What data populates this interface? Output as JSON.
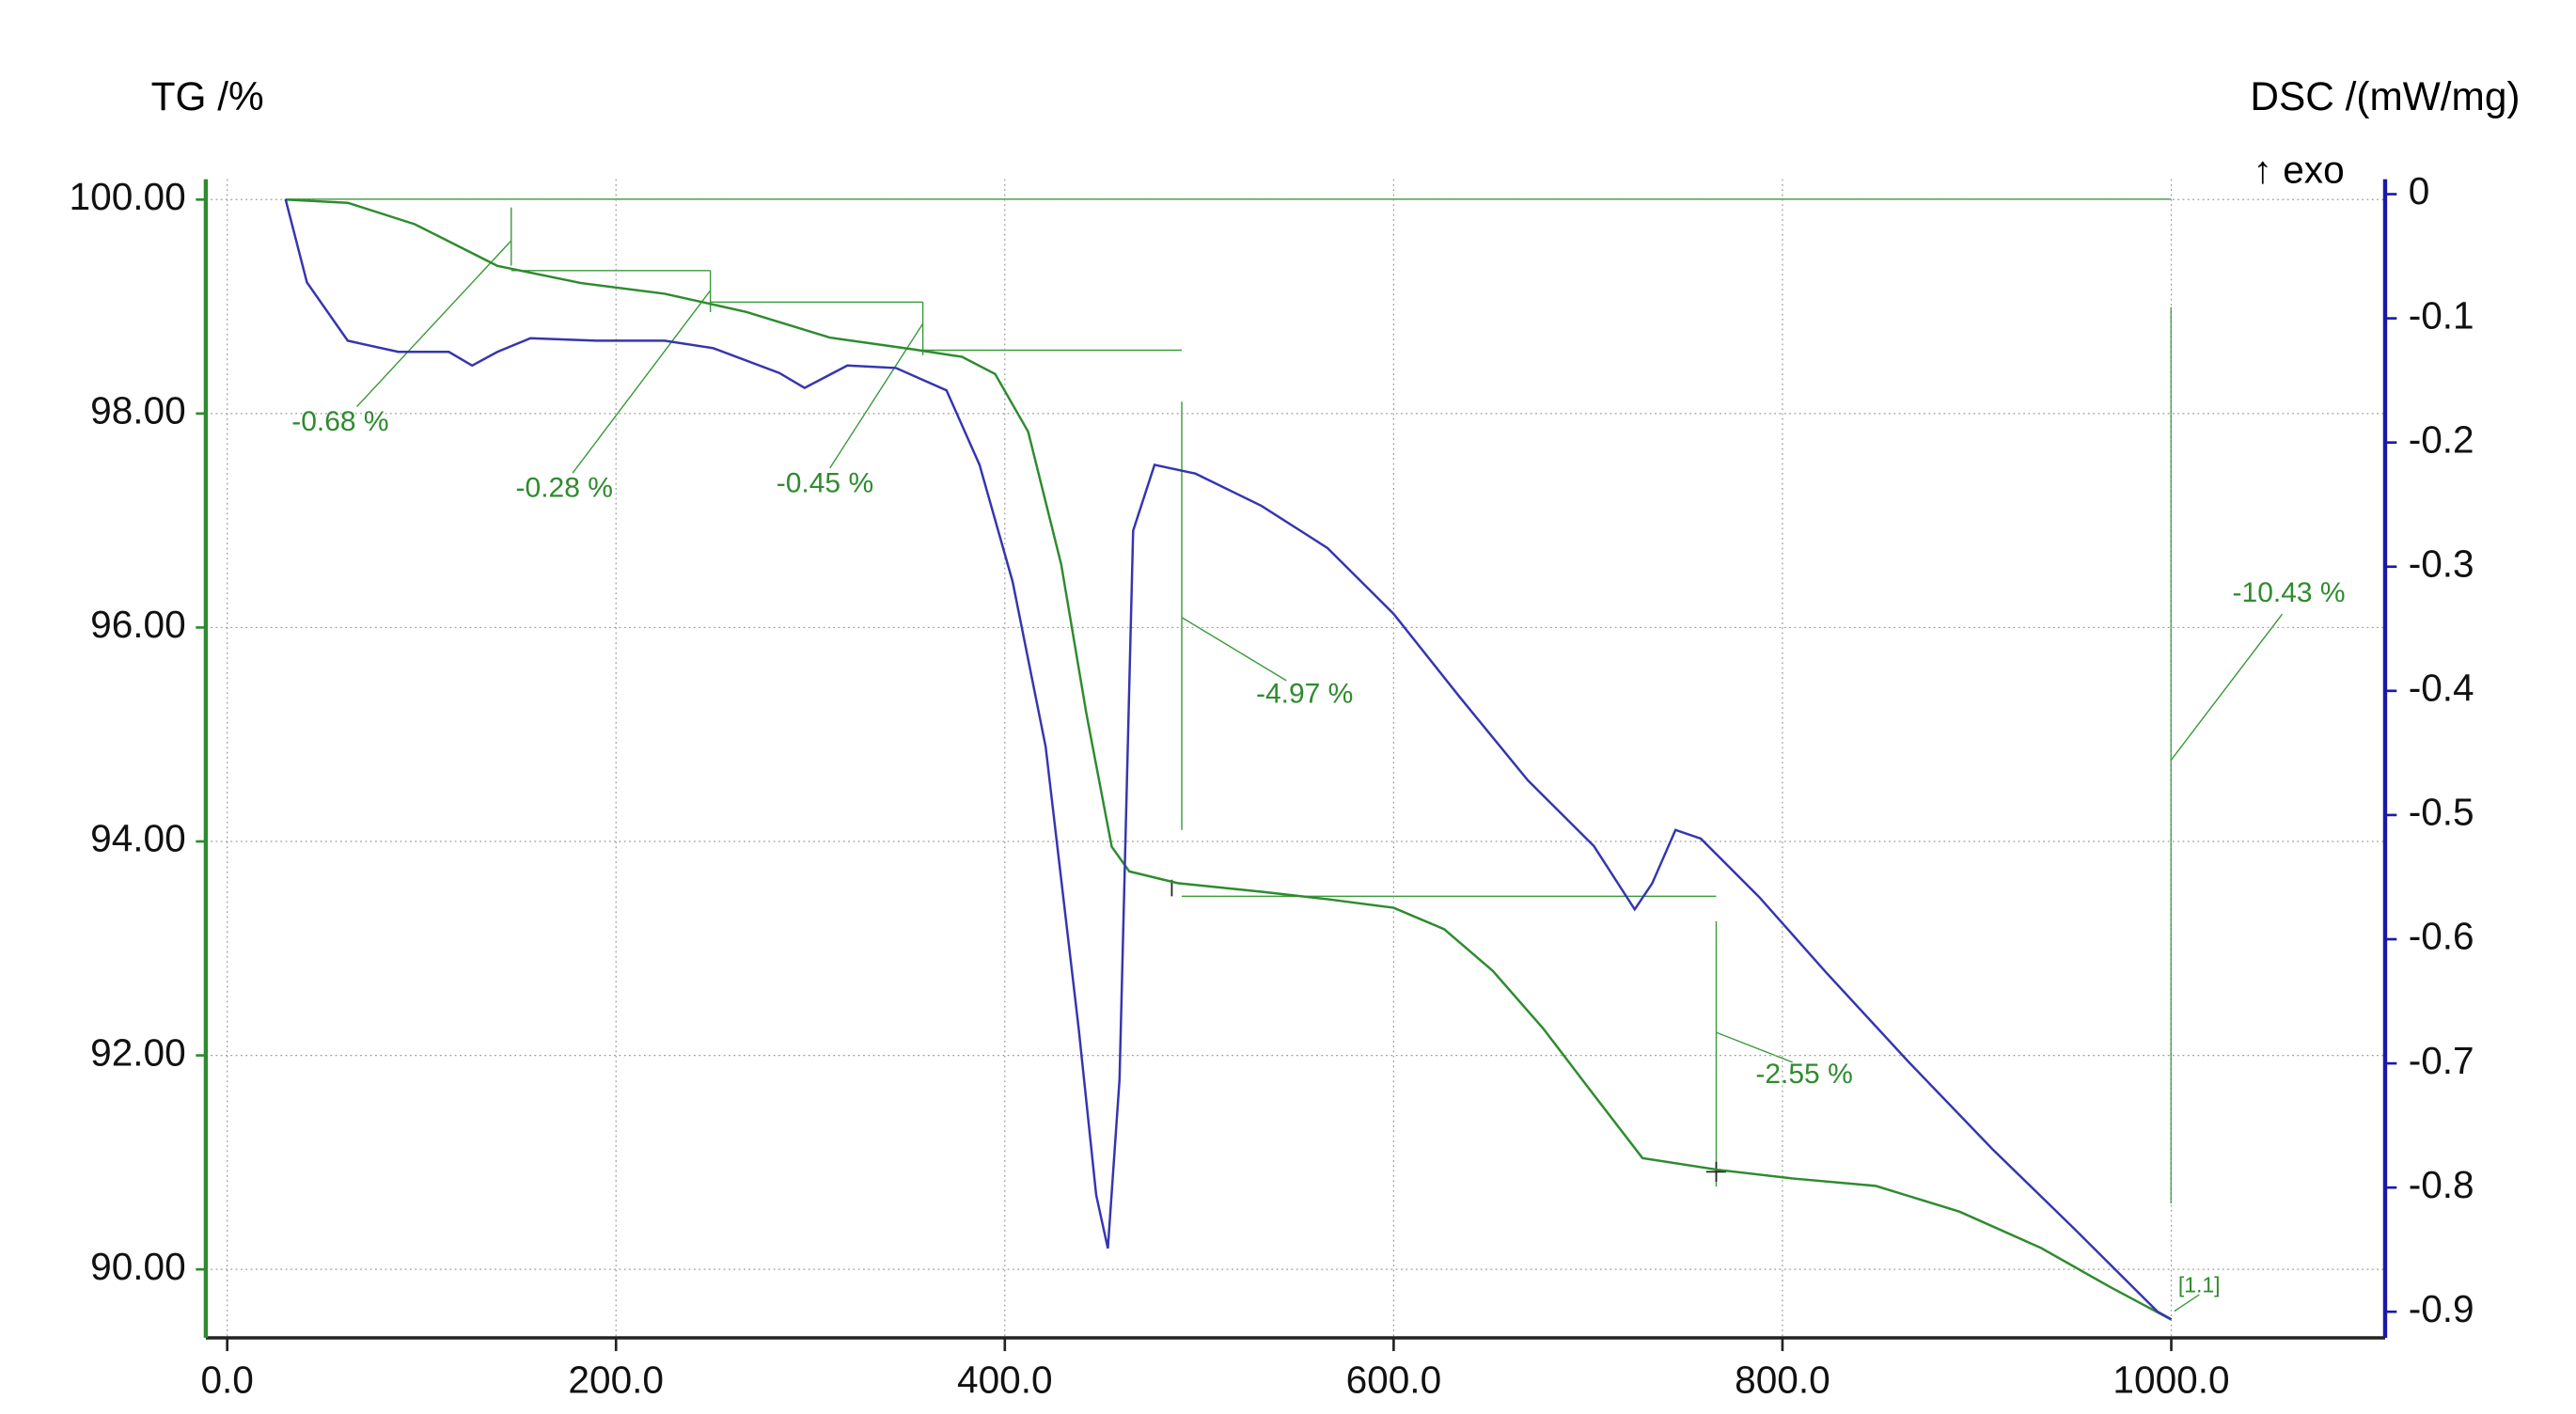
{
  "chart_data": {
    "type": "line",
    "y_label": "TG /%",
    "y2_label": "DSC /(mW/mg)",
    "exo_label": "↑ exo",
    "xlim": [
      -11,
      1110
    ],
    "ylim": [
      89.36,
      100.19
    ],
    "y2lim": [
      -0.921,
      0.012
    ],
    "xticks": [
      {
        "value": 0,
        "label": "0.0"
      },
      {
        "value": 200,
        "label": "200.0"
      },
      {
        "value": 400,
        "label": "400.0"
      },
      {
        "value": 600,
        "label": "600.0"
      },
      {
        "value": 800,
        "label": "800.0"
      },
      {
        "value": 1000,
        "label": "1000.0"
      }
    ],
    "yticks": [
      {
        "value": 90,
        "label": "90.00"
      },
      {
        "value": 92,
        "label": "92.00"
      },
      {
        "value": 94,
        "label": "94.00"
      },
      {
        "value": 96,
        "label": "96.00"
      },
      {
        "value": 98,
        "label": "98.00"
      },
      {
        "value": 100,
        "label": "100.00"
      }
    ],
    "y2ticks": [
      0,
      -0.1,
      -0.2,
      -0.3,
      -0.4,
      -0.5,
      -0.6,
      -0.7,
      -0.8,
      -0.9
    ],
    "grid": true,
    "series": [
      {
        "color": "#2e8b2e",
        "axis": "y",
        "x": [
          30,
          62,
          96.5,
          139,
          182,
          225,
          267,
          310,
          353,
          378,
          395,
          412,
          429,
          442,
          455,
          464,
          489,
          532,
          566,
          600,
          626,
          651,
          677,
          703,
          728,
          767,
          805,
          848,
          891,
          933,
          968,
          1000
        ],
        "values": [
          100.0,
          99.97,
          99.77,
          99.38,
          99.22,
          99.12,
          98.95,
          98.71,
          98.6,
          98.53,
          98.37,
          97.83,
          96.59,
          95.19,
          93.95,
          93.72,
          93.61,
          93.53,
          93.46,
          93.38,
          93.18,
          92.79,
          92.25,
          91.63,
          91.04,
          90.93,
          90.85,
          90.78,
          90.54,
          90.2,
          89.84,
          89.53
        ]
      },
      {
        "color": "#3535b0",
        "axis": "y2",
        "x": [
          30,
          41,
          62,
          88,
          114,
          126,
          139,
          156,
          190,
          225,
          250,
          284,
          297,
          319,
          344,
          370,
          387,
          404,
          421,
          438,
          447,
          453,
          459,
          466,
          477,
          498,
          532,
          566,
          600,
          634,
          669,
          703,
          724,
          733,
          745,
          758,
          788,
          822,
          865,
          908,
          950,
          993,
          1000
        ],
        "values": [
          -0.004,
          -0.071,
          -0.118,
          -0.127,
          -0.127,
          -0.138,
          -0.127,
          -0.116,
          -0.118,
          -0.118,
          -0.124,
          -0.144,
          -0.156,
          -0.138,
          -0.14,
          -0.158,
          -0.218,
          -0.312,
          -0.445,
          -0.672,
          -0.806,
          -0.849,
          -0.713,
          -0.271,
          -0.218,
          -0.225,
          -0.251,
          -0.285,
          -0.338,
          -0.405,
          -0.472,
          -0.525,
          -0.576,
          -0.555,
          -0.512,
          -0.519,
          -0.566,
          -0.626,
          -0.699,
          -0.769,
          -0.833,
          -0.9,
          -0.906
        ]
      }
    ],
    "annotations": [
      "-0.68 %",
      "-0.28 %",
      "-0.45 %",
      "-4.97 %",
      "-2.55 %",
      "-10.43 %",
      "[1.1]"
    ]
  }
}
